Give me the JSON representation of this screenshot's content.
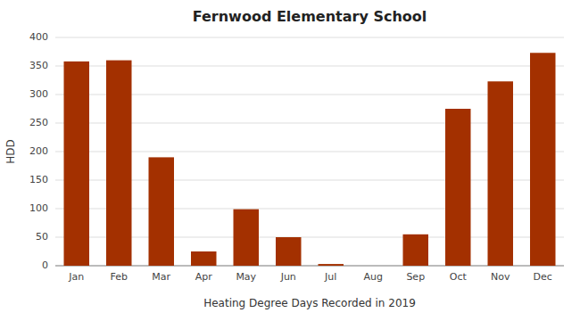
{
  "chart_data": {
    "type": "bar",
    "title": "Fernwood Elementary School",
    "xlabel": "Heating Degree Days Recorded in 2019",
    "ylabel": "HDD",
    "categories": [
      "Jan",
      "Feb",
      "Mar",
      "Apr",
      "May",
      "Jun",
      "Jul",
      "Aug",
      "Sep",
      "Oct",
      "Nov",
      "Dec"
    ],
    "values": [
      358,
      360,
      190,
      25,
      99,
      50,
      3,
      0,
      55,
      275,
      323,
      373
    ],
    "color": "#a33000",
    "ylim": [
      0,
      400
    ],
    "yticks": [
      0,
      50,
      100,
      150,
      200,
      250,
      300,
      350,
      400
    ],
    "grid": true
  }
}
